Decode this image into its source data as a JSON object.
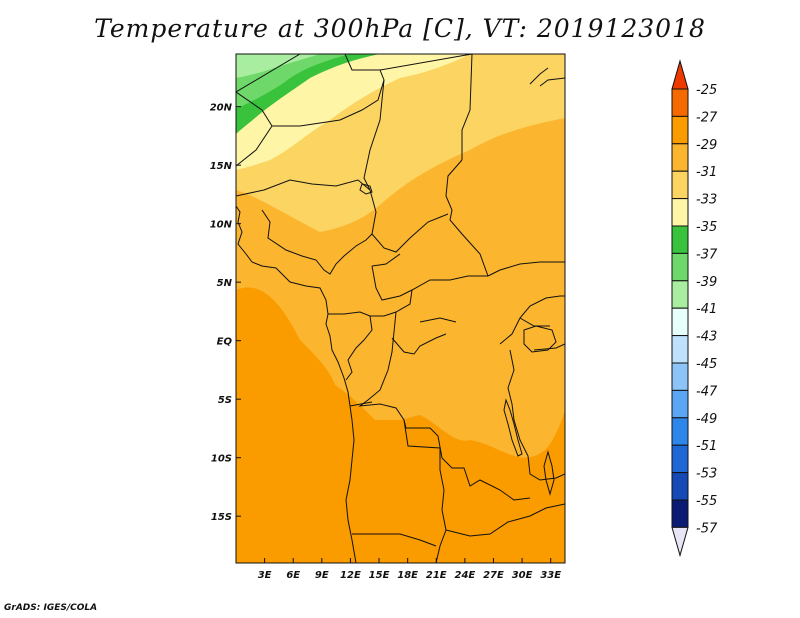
{
  "title": "Temperature at 300hPa [C], VT: 2019123018",
  "credit": "GrADS: IGES/COLA",
  "map": {
    "variable": "Temperature at 300hPa",
    "units": "C",
    "lon_range": [
      0,
      34.5
    ],
    "lat_range": [
      -19,
      24.5
    ],
    "lon_ticks": [
      "3E",
      "6E",
      "9E",
      "12E",
      "15E",
      "18E",
      "21E",
      "24E",
      "27E",
      "30E",
      "33E"
    ],
    "lat_ticks": [
      "20N",
      "15N",
      "10N",
      "5N",
      "EQ",
      "5S",
      "10S",
      "15S"
    ]
  },
  "colorbar": {
    "labels": [
      "-25",
      "-27",
      "-29",
      "-31",
      "-33",
      "-35",
      "-37",
      "-39",
      "-41",
      "-43",
      "-45",
      "-47",
      "-49",
      "-51",
      "-53",
      "-55",
      "-57"
    ],
    "colors": [
      "#ee3a00",
      "#f56a00",
      "#fa9b00",
      "#fbb52f",
      "#fbd461",
      "#fef5a6",
      "#39c23c",
      "#6ed96a",
      "#a8eda0",
      "#e6fffb",
      "#bfe1fb",
      "#8cc4f7",
      "#5aa6f2",
      "#2f86ea",
      "#1e67d5",
      "#1449b6",
      "#0b1b74"
    ],
    "top_arrow_color": "#ee3a00",
    "bottom_arrow_color": "#e7e5f6"
  },
  "field_colors": {
    "orange_dark": "#fa9b00",
    "orange": "#fbb52f",
    "yellow": "#fbd461",
    "pale_yellow": "#fef5a6",
    "green": "#39c23c",
    "light_green": "#6ed96a",
    "pale_green": "#a8eda0",
    "coast_line": "#111111"
  }
}
